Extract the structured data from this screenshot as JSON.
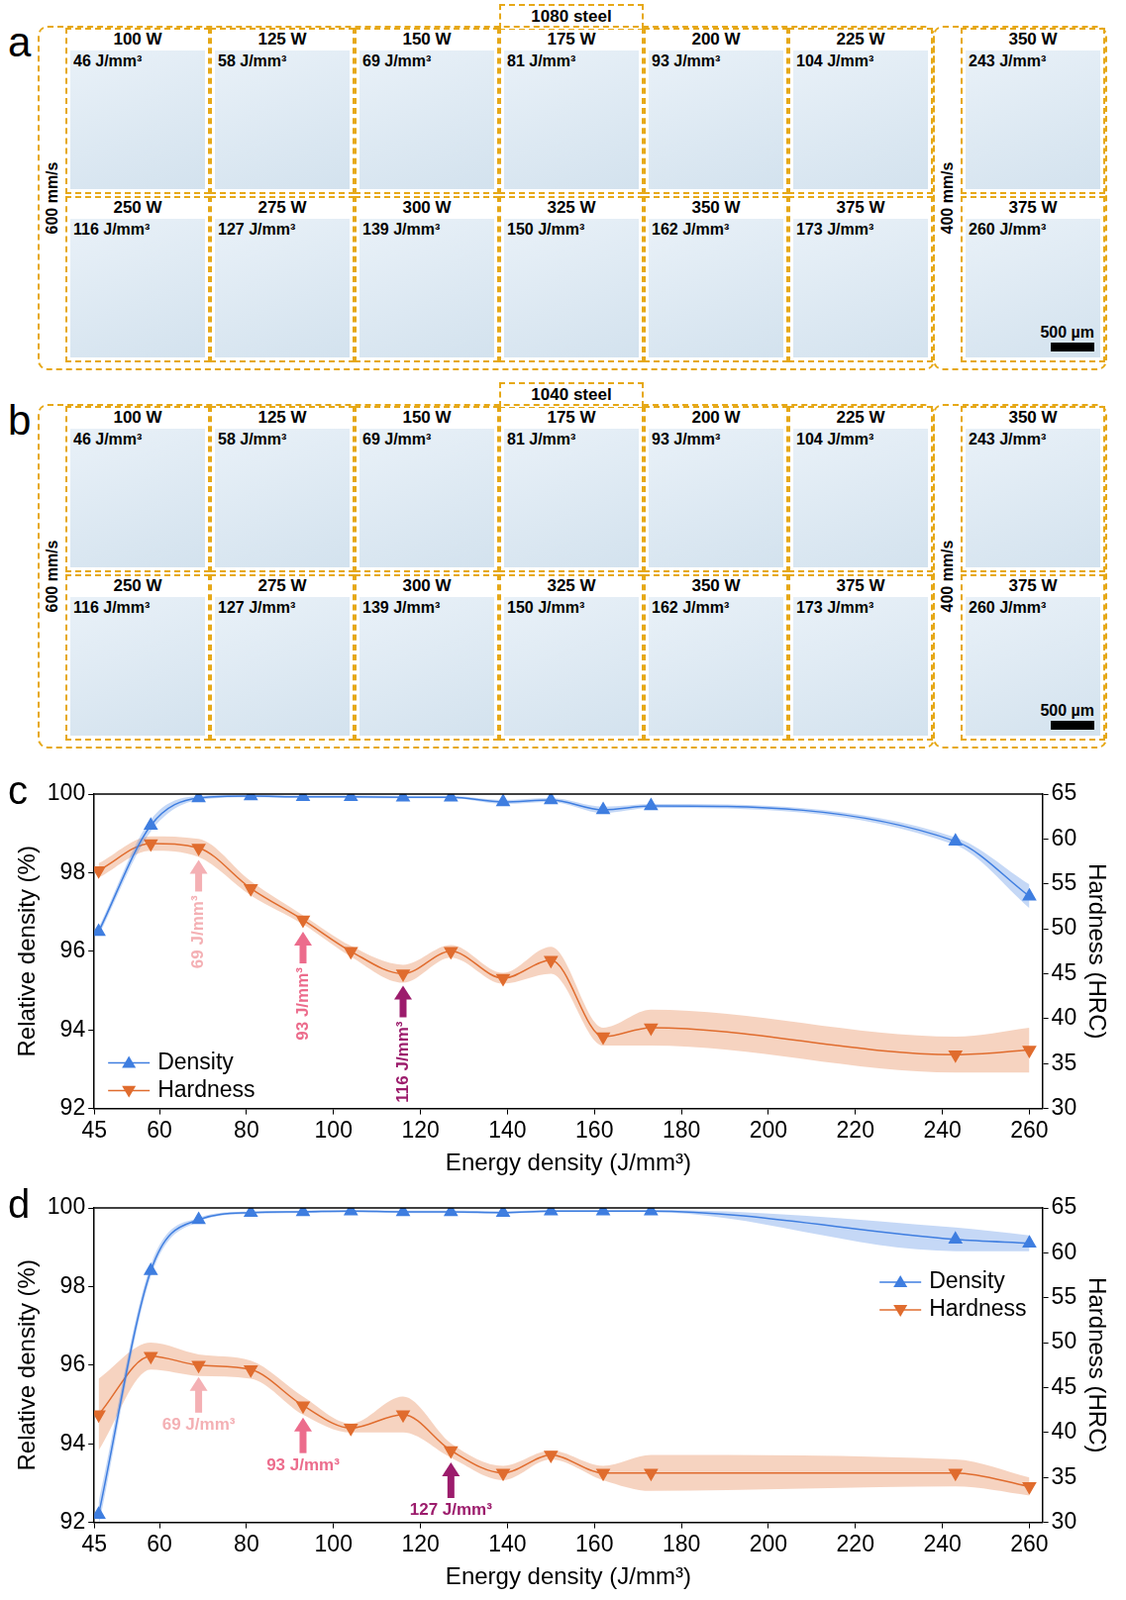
{
  "micrographs": [
    {
      "panel_label": "a",
      "title": "1080 steel",
      "scale_bar": "500 µm",
      "groups": [
        {
          "speed": "600 mm/s",
          "tiles": [
            [
              {
                "power": "100 W",
                "energy": "46 J/mm³"
              },
              {
                "power": "125 W",
                "energy": "58 J/mm³"
              },
              {
                "power": "150 W",
                "energy": "69 J/mm³"
              },
              {
                "power": "175 W",
                "energy": "81 J/mm³"
              },
              {
                "power": "200 W",
                "energy": "93 J/mm³"
              },
              {
                "power": "225 W",
                "energy": "104 J/mm³"
              }
            ],
            [
              {
                "power": "250 W",
                "energy": "116 J/mm³"
              },
              {
                "power": "275 W",
                "energy": "127 J/mm³"
              },
              {
                "power": "300 W",
                "energy": "139 J/mm³"
              },
              {
                "power": "325 W",
                "energy": "150 J/mm³"
              },
              {
                "power": "350 W",
                "energy": "162 J/mm³"
              },
              {
                "power": "375 W",
                "energy": "173 J/mm³"
              }
            ]
          ]
        },
        {
          "speed": "400 mm/s",
          "tiles": [
            [
              {
                "power": "350 W",
                "energy": "243 J/mm³"
              }
            ],
            [
              {
                "power": "375 W",
                "energy": "260 J/mm³"
              }
            ]
          ]
        }
      ]
    },
    {
      "panel_label": "b",
      "title": "1040 steel",
      "scale_bar": "500 µm",
      "groups": [
        {
          "speed": "600 mm/s",
          "tiles": [
            [
              {
                "power": "100 W",
                "energy": "46 J/mm³"
              },
              {
                "power": "125 W",
                "energy": "58 J/mm³"
              },
              {
                "power": "150 W",
                "energy": "69 J/mm³"
              },
              {
                "power": "175 W",
                "energy": "81 J/mm³"
              },
              {
                "power": "200 W",
                "energy": "93 J/mm³"
              },
              {
                "power": "225 W",
                "energy": "104 J/mm³"
              }
            ],
            [
              {
                "power": "250 W",
                "energy": "116 J/mm³"
              },
              {
                "power": "275 W",
                "energy": "127 J/mm³"
              },
              {
                "power": "300 W",
                "energy": "139 J/mm³"
              },
              {
                "power": "325 W",
                "energy": "150 J/mm³"
              },
              {
                "power": "350 W",
                "energy": "162 J/mm³"
              },
              {
                "power": "375 W",
                "energy": "173 J/mm³"
              }
            ]
          ]
        },
        {
          "speed": "400 mm/s",
          "tiles": [
            [
              {
                "power": "350 W",
                "energy": "243 J/mm³"
              }
            ],
            [
              {
                "power": "375 W",
                "energy": "260 J/mm³"
              }
            ]
          ]
        }
      ]
    }
  ],
  "chart_data": [
    {
      "type": "line",
      "panel_label": "c",
      "x_label": "Energy density (J/mm³)",
      "y_label": "Relative density (%)",
      "y2_label": "Hardness (HRC)",
      "x": [
        46,
        58,
        69,
        81,
        93,
        104,
        116,
        127,
        139,
        150,
        162,
        173,
        243,
        260
      ],
      "series": [
        {
          "name": "Density",
          "color": "#3f7ee0",
          "marker": "triangle-up",
          "line_style": "solid",
          "axis": "y",
          "values": [
            96.5,
            99.2,
            99.9,
            99.95,
            99.93,
            99.93,
            99.92,
            99.92,
            99.8,
            99.85,
            99.6,
            99.7,
            98.8,
            97.4
          ],
          "error": [
            0.1,
            0.15,
            0.05,
            0.03,
            0.03,
            0.03,
            0.03,
            0.03,
            0.05,
            0.05,
            0.08,
            0.05,
            0.1,
            0.3
          ]
        },
        {
          "name": "Hardness",
          "color": "#e06c2e",
          "marker": "triangle-down",
          "line_style": "solid",
          "axis": "y2",
          "values": [
            56.5,
            59.5,
            59,
            54.5,
            51,
            47.5,
            45,
            47.5,
            44.5,
            46.5,
            38,
            39,
            36,
            36.5
          ],
          "error": [
            0.8,
            0.8,
            1,
            0.8,
            0.5,
            0.6,
            1,
            0.7,
            0.6,
            1.5,
            1,
            2,
            2,
            2.5
          ]
        }
      ],
      "xlim": [
        45,
        263
      ],
      "xticks": [
        45,
        60,
        80,
        100,
        120,
        140,
        160,
        180,
        200,
        220,
        240,
        260
      ],
      "ylim": [
        92,
        100
      ],
      "yticks": [
        92,
        94,
        96,
        98,
        100
      ],
      "y2lim": [
        30,
        65
      ],
      "y2ticks": [
        30,
        35,
        40,
        45,
        50,
        55,
        60,
        65
      ],
      "grid": false,
      "legend": "lower left",
      "annotations": [
        {
          "text": "69 J/mm³",
          "x": 69,
          "series": "Hardness",
          "color": "#f4b0b4"
        },
        {
          "text": "93 J/mm³",
          "x": 93,
          "series": "Hardness",
          "color": "#ec6c8c"
        },
        {
          "text": "116 J/mm³",
          "x": 116,
          "series": "Hardness",
          "color": "#9c1c6c"
        }
      ]
    },
    {
      "type": "line",
      "panel_label": "d",
      "x_label": "Energy density (J/mm³)",
      "y_label": "Relative density (%)",
      "y2_label": "Hardness (HRC)",
      "x": [
        46,
        58,
        69,
        81,
        93,
        104,
        116,
        127,
        139,
        150,
        162,
        173,
        243,
        260
      ],
      "series": [
        {
          "name": "Density",
          "color": "#3f7ee0",
          "marker": "triangle-up",
          "line_style": "solid",
          "axis": "y",
          "values": [
            92.2,
            98.4,
            99.7,
            99.88,
            99.9,
            99.92,
            99.9,
            99.9,
            99.88,
            99.92,
            99.92,
            99.92,
            99.2,
            99.1
          ],
          "error": [
            0.3,
            0.15,
            0.05,
            0.03,
            0.03,
            0.03,
            0.03,
            0.03,
            0.03,
            0.03,
            0.03,
            0.03,
            0.3,
            0.2
          ]
        },
        {
          "name": "Hardness",
          "color": "#e06c2e",
          "marker": "triangle-down",
          "line_style": "solid",
          "axis": "y2",
          "values": [
            42,
            48.5,
            47.5,
            47,
            43,
            40.5,
            42,
            38,
            35.5,
            37.5,
            35.5,
            35.5,
            35.5,
            34
          ],
          "error": [
            4,
            1.5,
            1.2,
            1,
            1,
            0.5,
            2,
            0.8,
            0.8,
            0.5,
            0.8,
            2,
            1.5,
            1
          ]
        }
      ],
      "xlim": [
        45,
        263
      ],
      "xticks": [
        45,
        60,
        80,
        100,
        120,
        140,
        160,
        180,
        200,
        220,
        240,
        260
      ],
      "ylim": [
        92,
        100
      ],
      "yticks": [
        92,
        94,
        96,
        98,
        100
      ],
      "y2lim": [
        30,
        65
      ],
      "y2ticks": [
        30,
        35,
        40,
        45,
        50,
        55,
        60,
        65
      ],
      "grid": false,
      "legend": "upper right",
      "annotations": [
        {
          "text": "69 J/mm³",
          "x": 69,
          "series": "Hardness",
          "color": "#f4b0b4"
        },
        {
          "text": "93 J/mm³",
          "x": 93,
          "series": "Hardness",
          "color": "#ec6c8c"
        },
        {
          "text": "127 J/mm³",
          "x": 127,
          "series": "Hardness",
          "color": "#9c1c6c"
        }
      ]
    }
  ]
}
